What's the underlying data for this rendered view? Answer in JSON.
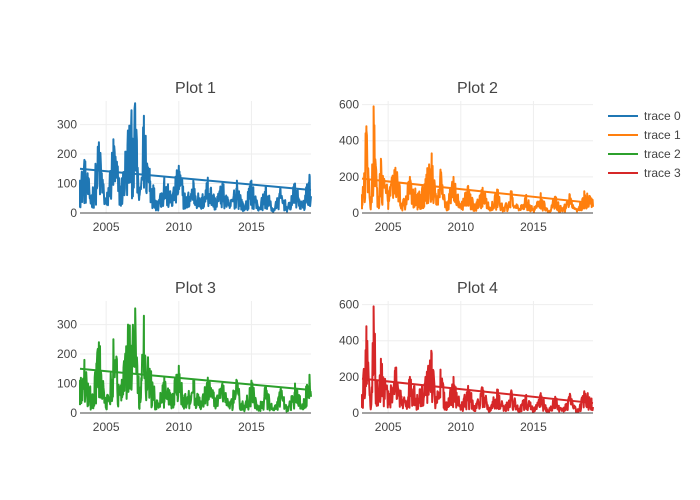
{
  "chart_data": [
    {
      "type": "line",
      "title": "Plot 1",
      "color": "#1f77b4",
      "xlim": [
        2003.2,
        2019.1
      ],
      "ylim": [
        0,
        380
      ],
      "x_ticks": [
        2005,
        2010,
        2015
      ],
      "y_ticks": [
        0,
        100,
        200,
        300
      ],
      "series": [
        {
          "name": "trace 0",
          "kind": "noisy-signal",
          "x": [
            2003.2,
            2003.5,
            2004.0,
            2004.5,
            2005.0,
            2005.5,
            2006.0,
            2006.5,
            2007.0,
            2007.3,
            2007.6,
            2008.0,
            2008.5,
            2009.0,
            2009.5,
            2010.0,
            2010.5,
            2011.0,
            2011.5,
            2012.0,
            2012.5,
            2013.0,
            2013.5,
            2014.0,
            2014.5,
            2015.0,
            2015.5,
            2016.0,
            2016.5,
            2017.0,
            2017.5,
            2018.0,
            2018.5,
            2019.0
          ],
          "y": [
            110,
            180,
            60,
            240,
            40,
            250,
            90,
            280,
            355,
            60,
            330,
            150,
            40,
            120,
            60,
            160,
            50,
            110,
            40,
            120,
            50,
            100,
            30,
            110,
            20,
            110,
            20,
            90,
            10,
            80,
            20,
            100,
            30,
            130
          ]
        },
        {
          "name": "trend",
          "kind": "trend",
          "x": [
            2003.2,
            2019.1
          ],
          "y": [
            150,
            78
          ]
        }
      ]
    },
    {
      "type": "line",
      "title": "Plot 2",
      "color": "#ff7f0e",
      "xlim": [
        2003.2,
        2019.1
      ],
      "ylim": [
        0,
        620
      ],
      "x_ticks": [
        2005,
        2010,
        2015
      ],
      "y_ticks": [
        0,
        200,
        400,
        600
      ],
      "series": [
        {
          "name": "trace 1",
          "kind": "noisy-signal",
          "x": [
            2003.2,
            2003.5,
            2003.8,
            2004.0,
            2004.3,
            2004.5,
            2005.0,
            2005.5,
            2006.0,
            2006.5,
            2007.0,
            2007.5,
            2008.0,
            2008.3,
            2008.6,
            2009.0,
            2009.5,
            2010.0,
            2010.5,
            2011.0,
            2011.5,
            2012.0,
            2012.5,
            2013.0,
            2013.5,
            2014.0,
            2014.5,
            2015.0,
            2015.5,
            2016.0,
            2016.5,
            2017.0,
            2017.5,
            2018.0,
            2018.5,
            2019.0
          ],
          "y": [
            100,
            480,
            20,
            590,
            60,
            300,
            120,
            250,
            60,
            200,
            100,
            160,
            330,
            80,
            240,
            60,
            200,
            40,
            150,
            40,
            140,
            30,
            130,
            30,
            120,
            20,
            100,
            20,
            110,
            10,
            90,
            20,
            100,
            10,
            120,
            80
          ]
        },
        {
          "name": "trend",
          "kind": "trend",
          "x": [
            2003.2,
            2019.1
          ],
          "y": [
            190,
            55
          ]
        }
      ]
    },
    {
      "type": "line",
      "title": "Plot 3",
      "color": "#2ca02c",
      "xlim": [
        2003.2,
        2019.1
      ],
      "ylim": [
        0,
        380
      ],
      "x_ticks": [
        2005,
        2010,
        2015
      ],
      "y_ticks": [
        0,
        100,
        200,
        300
      ],
      "series": [
        {
          "name": "trace 2",
          "kind": "noisy-signal",
          "x": [
            2003.2,
            2003.5,
            2004.0,
            2004.5,
            2005.0,
            2005.5,
            2006.0,
            2006.5,
            2007.0,
            2007.3,
            2007.6,
            2008.0,
            2008.5,
            2009.0,
            2009.5,
            2010.0,
            2010.5,
            2011.0,
            2011.5,
            2012.0,
            2012.5,
            2013.0,
            2013.5,
            2014.0,
            2014.5,
            2015.0,
            2015.5,
            2016.0,
            2016.5,
            2017.0,
            2017.5,
            2018.0,
            2018.5,
            2019.0
          ],
          "y": [
            110,
            180,
            60,
            240,
            40,
            250,
            90,
            280,
            355,
            60,
            330,
            150,
            40,
            120,
            60,
            160,
            50,
            110,
            40,
            120,
            50,
            100,
            30,
            110,
            20,
            110,
            20,
            90,
            10,
            80,
            20,
            100,
            30,
            130
          ]
        },
        {
          "name": "trend",
          "kind": "trend",
          "x": [
            2003.2,
            2019.1
          ],
          "y": [
            150,
            78
          ]
        }
      ]
    },
    {
      "type": "line",
      "title": "Plot 4",
      "color": "#d62728",
      "xlim": [
        2003.2,
        2019.1
      ],
      "ylim": [
        0,
        620
      ],
      "x_ticks": [
        2005,
        2010,
        2015
      ],
      "y_ticks": [
        0,
        200,
        400,
        600
      ],
      "series": [
        {
          "name": "trace 3",
          "kind": "noisy-signal",
          "x": [
            2003.2,
            2003.5,
            2003.8,
            2004.0,
            2004.3,
            2004.5,
            2005.0,
            2005.5,
            2006.0,
            2006.5,
            2007.0,
            2007.5,
            2008.0,
            2008.3,
            2008.6,
            2009.0,
            2009.5,
            2010.0,
            2010.5,
            2011.0,
            2011.5,
            2012.0,
            2012.5,
            2013.0,
            2013.5,
            2014.0,
            2014.5,
            2015.0,
            2015.5,
            2016.0,
            2016.5,
            2017.0,
            2017.5,
            2018.0,
            2018.5,
            2019.0
          ],
          "y": [
            100,
            480,
            20,
            590,
            60,
            300,
            120,
            250,
            60,
            200,
            100,
            160,
            330,
            80,
            240,
            60,
            200,
            40,
            150,
            40,
            140,
            30,
            130,
            30,
            120,
            20,
            100,
            20,
            110,
            10,
            90,
            20,
            100,
            10,
            120,
            80
          ]
        },
        {
          "name": "trend",
          "kind": "trend",
          "x": [
            2003.2,
            2019.1
          ],
          "y": [
            190,
            55
          ]
        }
      ]
    }
  ],
  "legend": {
    "items": [
      {
        "label": "trace 0",
        "color": "#1f77b4"
      },
      {
        "label": "trace 1",
        "color": "#ff7f0e"
      },
      {
        "label": "trace 2",
        "color": "#2ca02c"
      },
      {
        "label": "trace 3",
        "color": "#d62728"
      }
    ]
  },
  "style": {
    "grid": true,
    "gridColor": "#eeeeee",
    "axisColor": "#444444"
  }
}
